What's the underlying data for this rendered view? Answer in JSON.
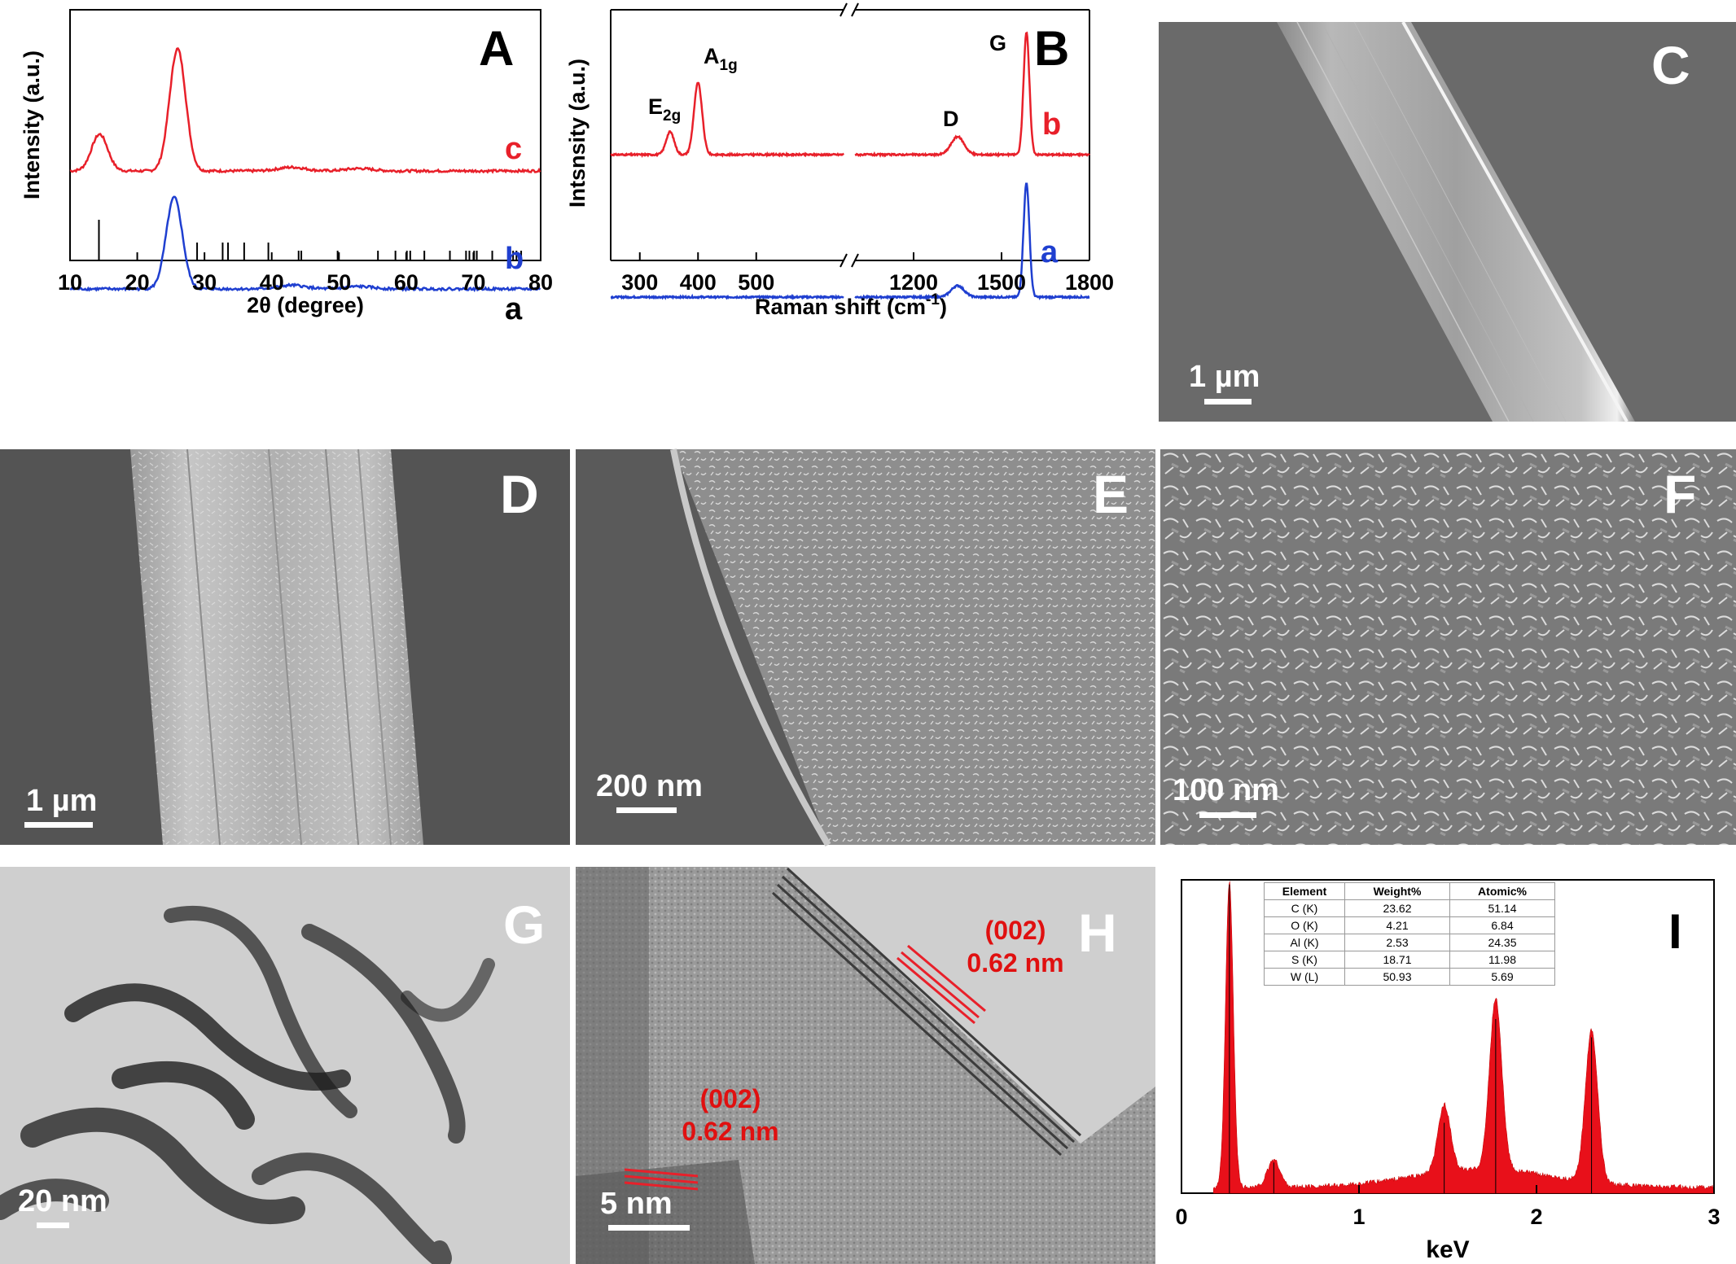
{
  "panelA": {
    "label": "A",
    "ylabel": "Intensity (a.u.)",
    "xlabel": "2θ (degree)",
    "xticks": [
      "10",
      "20",
      "30",
      "40",
      "50",
      "60",
      "70",
      "80"
    ],
    "curve_labels": {
      "c": "c",
      "b": "b",
      "a": "a"
    }
  },
  "panelB": {
    "label": "B",
    "ylabel": "Intsnsity (a.u.)",
    "xlabel_main": "Raman shift (cm",
    "xlabel_sup": "-1",
    "xlabel_end": ")",
    "xticks": [
      "300",
      "400",
      "500",
      "1200",
      "1500",
      "1800"
    ],
    "peak_labels": {
      "e2g_main": "E",
      "e2g_sub": "2g",
      "a1g_main": "A",
      "a1g_sub": "1g",
      "d": "D",
      "g": "G"
    },
    "curve_labels": {
      "b": "b",
      "a": "a"
    }
  },
  "panelC": {
    "label": "C",
    "scale": "1 µm"
  },
  "panelD": {
    "label": "D",
    "scale": "1 µm"
  },
  "panelE": {
    "label": "E",
    "scale": "200 nm"
  },
  "panelF": {
    "label": "F",
    "scale": "100 nm"
  },
  "panelG": {
    "label": "G",
    "scale": "20 nm"
  },
  "panelH": {
    "label": "H",
    "scale": "5 nm",
    "annot1": {
      "plane": "(002)",
      "spacing": "0.62 nm"
    },
    "annot2": {
      "plane": "(002)",
      "spacing": "0.62 nm"
    }
  },
  "panelI": {
    "label": "I",
    "xlabel": "keV",
    "xticks": [
      "0",
      "1",
      "2",
      "3"
    ],
    "table": {
      "headers": [
        "Element",
        "Weight%",
        "Atomic%"
      ],
      "rows": [
        [
          "C (K)",
          "23.62",
          "51.14"
        ],
        [
          "O (K)",
          "4.21",
          "6.84"
        ],
        [
          "Al (K)",
          "2.53",
          "24.35"
        ],
        [
          "S (K)",
          "18.71",
          "11.98"
        ],
        [
          "W (L)",
          "50.93",
          "5.69"
        ]
      ]
    }
  },
  "chart_data": [
    {
      "type": "line",
      "panel": "A",
      "xlabel": "2θ (degree)",
      "ylabel": "Intensity (a.u.)",
      "xlim": [
        10,
        80
      ],
      "series": [
        {
          "name": "c",
          "color": "#e8202a",
          "peaks": [
            {
              "x": 14.4,
              "h": 0.3
            },
            {
              "x": 26,
              "h": 1.0
            }
          ]
        },
        {
          "name": "b",
          "color": "#1f3fd0",
          "peaks": [
            {
              "x": 25.5,
              "h": 0.75
            }
          ]
        },
        {
          "name": "a",
          "color": "#000000",
          "sticks": [
            14.3,
            28.9,
            32.7,
            33.5,
            35.9,
            39.5,
            44.0,
            44.4,
            49.8,
            55.8,
            58.4,
            60.1,
            60.6,
            62.7,
            66.5,
            68.9,
            69.4,
            70.1,
            70.5,
            72.8,
            75.9,
            76.4,
            77.1
          ]
        }
      ]
    },
    {
      "type": "line",
      "panel": "B",
      "xlabel": "Raman shift (cm-1)",
      "ylabel": "Intsnsity (a.u.)",
      "xlim_left": [
        250,
        650
      ],
      "xlim_right": [
        1000,
        1800
      ],
      "series": [
        {
          "name": "b",
          "color": "#e8202a",
          "peaks": [
            {
              "x": 352,
              "label": "E2g"
            },
            {
              "x": 400,
              "label": "A1g"
            },
            {
              "x": 1350,
              "label": "D"
            },
            {
              "x": 1585,
              "label": "G"
            }
          ]
        },
        {
          "name": "a",
          "color": "#1f3fd0",
          "peaks": [
            {
              "x": 1350
            },
            {
              "x": 1585
            }
          ]
        }
      ]
    },
    {
      "type": "bar",
      "panel": "I",
      "xlabel": "keV",
      "xlim": [
        0,
        3
      ],
      "peaks": [
        {
          "x": 0.27,
          "label": "C",
          "h": 1.0
        },
        {
          "x": 0.52,
          "label": "O",
          "h": 0.09
        },
        {
          "x": 1.48,
          "label": "Al",
          "h": 0.22
        },
        {
          "x": 1.77,
          "label": "W",
          "h": 0.56
        },
        {
          "x": 2.31,
          "label": "S",
          "h": 0.5
        }
      ]
    }
  ]
}
